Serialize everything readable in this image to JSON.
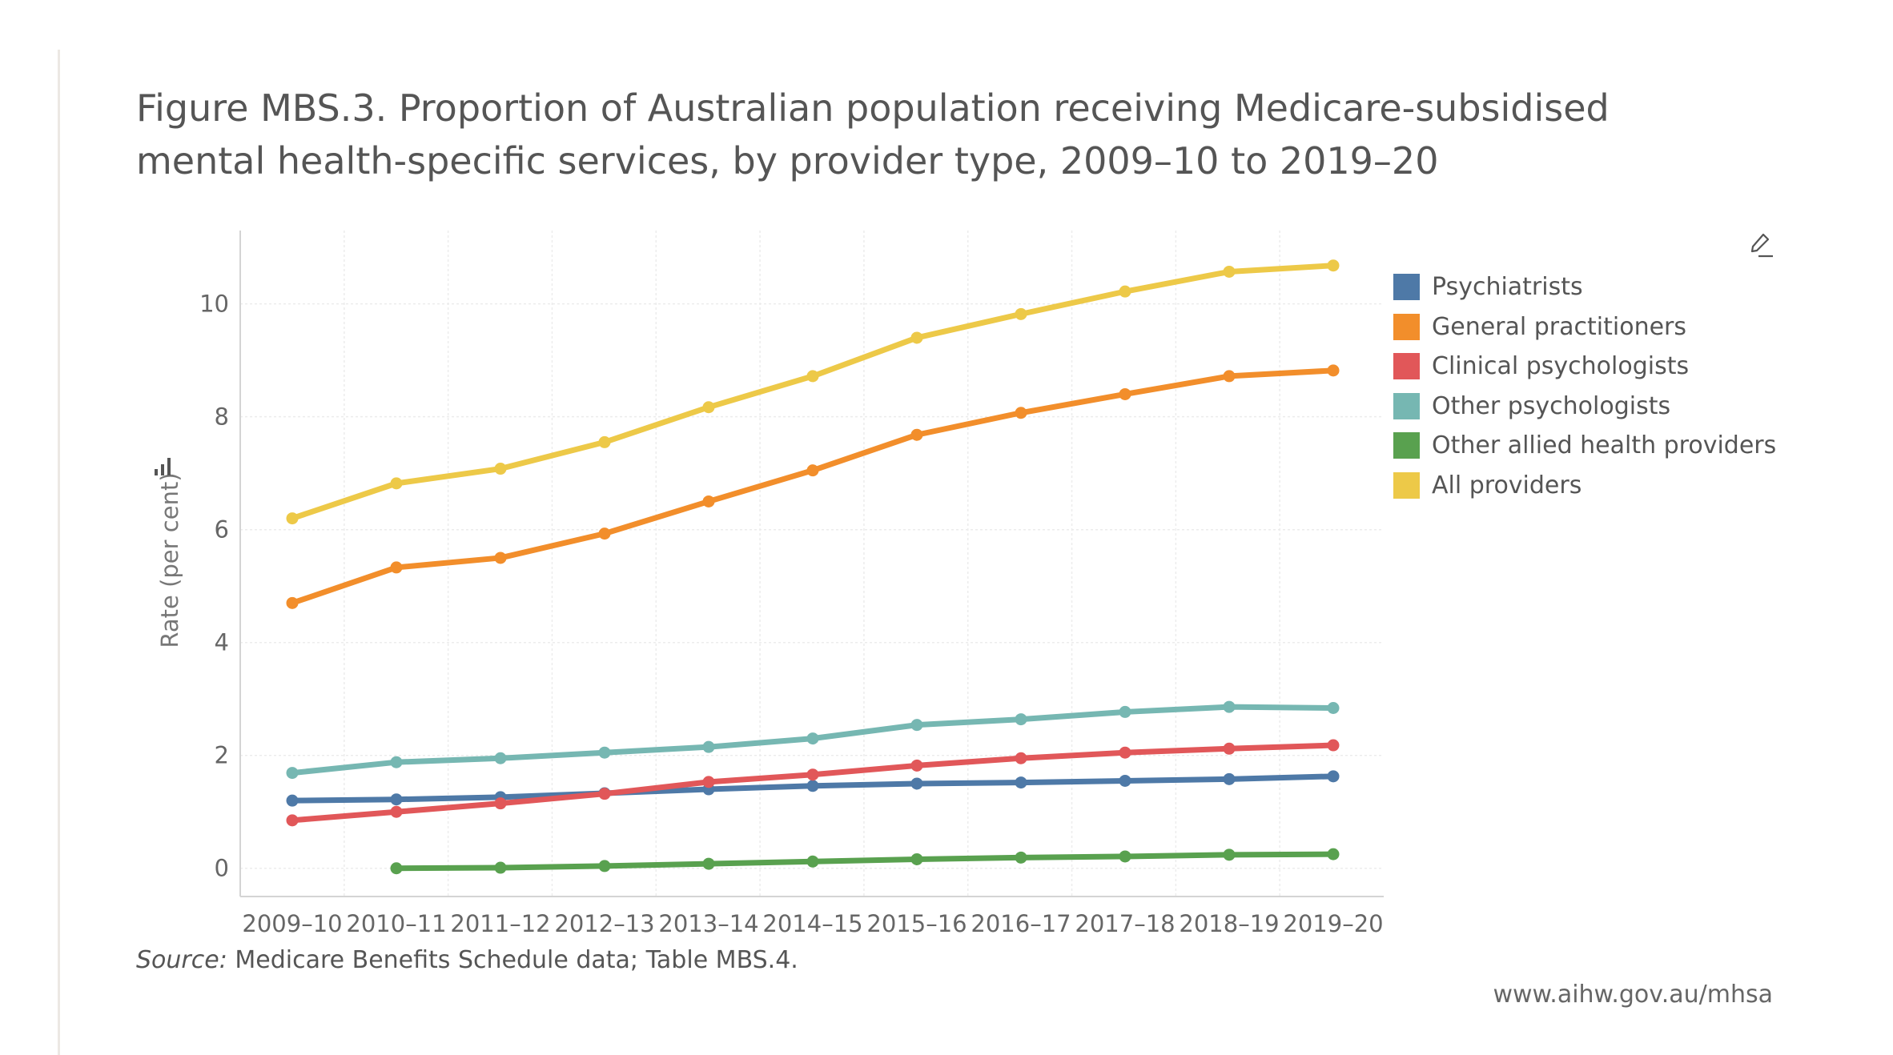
{
  "title_lines": [
    "Figure MBS.3. Proportion of Australian population receiving Medicare-subsidised",
    "mental health-specific services, by provider type, 2009–10 to 2019–20"
  ],
  "source": {
    "label": "Source:",
    "text": "Medicare Benefits Schedule data; Table MBS.4."
  },
  "url": "www.aihw.gov.au/mhsa",
  "icons": {
    "edit": "edit-pencil-icon",
    "axis": "bar-chart-axis-icon"
  },
  "chart_data": {
    "type": "line",
    "title": "Figure MBS.3. Proportion of Australian population receiving Medicare-subsidised mental health-specific services, by provider type, 2009–10 to 2019–20",
    "ylabel": "Rate (per cent)",
    "xlabel": "",
    "ylim": [
      -0.5,
      11.3
    ],
    "yticks": [
      0,
      2,
      4,
      6,
      8,
      10
    ],
    "grid": true,
    "legend_position": "right",
    "categories": [
      "2009–10",
      "2010–11",
      "2011–12",
      "2012–13",
      "2013–14",
      "2014–15",
      "2015–16",
      "2016–17",
      "2017–18",
      "2018–19",
      "2019–20"
    ],
    "series": [
      {
        "name": "Psychiatrists",
        "color": "#4e79a7",
        "values": [
          1.2,
          1.22,
          1.26,
          1.33,
          1.4,
          1.46,
          1.5,
          1.52,
          1.55,
          1.58,
          1.63
        ]
      },
      {
        "name": "General practitioners",
        "color": "#f28e2b",
        "values": [
          4.7,
          5.33,
          5.5,
          5.93,
          6.5,
          7.05,
          7.68,
          8.07,
          8.4,
          8.72,
          8.82
        ]
      },
      {
        "name": "Clinical psychologists",
        "color": "#e15759",
        "values": [
          0.85,
          1.0,
          1.15,
          1.32,
          1.53,
          1.66,
          1.82,
          1.95,
          2.05,
          2.12,
          2.18
        ]
      },
      {
        "name": "Other psychologists",
        "color": "#76b7b2",
        "values": [
          1.69,
          1.88,
          1.95,
          2.05,
          2.15,
          2.3,
          2.54,
          2.64,
          2.77,
          2.86,
          2.84
        ]
      },
      {
        "name": "Other allied health providers",
        "color": "#59a14f",
        "values": [
          null,
          0.0,
          0.01,
          0.04,
          0.08,
          0.12,
          0.16,
          0.19,
          0.21,
          0.24,
          0.25
        ]
      },
      {
        "name": "All providers",
        "color": "#edc948",
        "values": [
          6.2,
          6.82,
          7.08,
          7.55,
          8.17,
          8.72,
          9.4,
          9.82,
          10.22,
          10.57,
          10.68
        ]
      }
    ]
  }
}
